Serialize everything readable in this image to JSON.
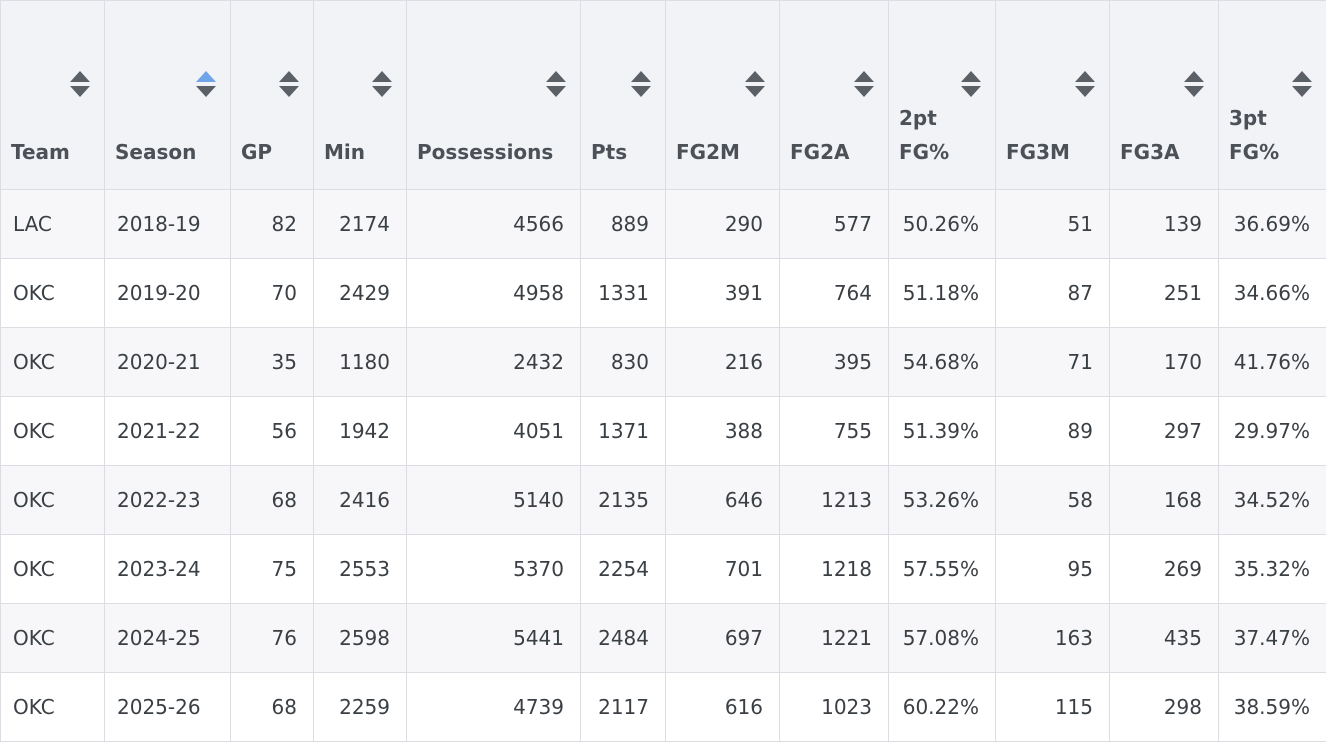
{
  "table": {
    "columns": [
      {
        "label": "Team",
        "sorted": false
      },
      {
        "label": "Season",
        "sorted": "asc"
      },
      {
        "label": "GP",
        "sorted": false
      },
      {
        "label": "Min",
        "sorted": false
      },
      {
        "label": "Possessions",
        "sorted": false
      },
      {
        "label": "Pts",
        "sorted": false
      },
      {
        "label": "FG2M",
        "sorted": false
      },
      {
        "label": "FG2A",
        "sorted": false
      },
      {
        "label": "2pt FG%",
        "sorted": false
      },
      {
        "label": "FG3M",
        "sorted": false
      },
      {
        "label": "FG3A",
        "sorted": false
      },
      {
        "label": "3pt FG%",
        "sorted": false
      }
    ],
    "rows": [
      [
        "LAC",
        "2018-19",
        "82",
        "2174",
        "4566",
        "889",
        "290",
        "577",
        "50.26%",
        "51",
        "139",
        "36.69%"
      ],
      [
        "OKC",
        "2019-20",
        "70",
        "2429",
        "4958",
        "1331",
        "391",
        "764",
        "51.18%",
        "87",
        "251",
        "34.66%"
      ],
      [
        "OKC",
        "2020-21",
        "35",
        "1180",
        "2432",
        "830",
        "216",
        "395",
        "54.68%",
        "71",
        "170",
        "41.76%"
      ],
      [
        "OKC",
        "2021-22",
        "56",
        "1942",
        "4051",
        "1371",
        "388",
        "755",
        "51.39%",
        "89",
        "297",
        "29.97%"
      ],
      [
        "OKC",
        "2022-23",
        "68",
        "2416",
        "5140",
        "2135",
        "646",
        "1213",
        "53.26%",
        "58",
        "168",
        "34.52%"
      ],
      [
        "OKC",
        "2023-24",
        "75",
        "2553",
        "5370",
        "2254",
        "701",
        "1218",
        "57.55%",
        "95",
        "269",
        "35.32%"
      ],
      [
        "OKC",
        "2024-25",
        "76",
        "2598",
        "5441",
        "2484",
        "697",
        "1221",
        "57.08%",
        "163",
        "435",
        "37.47%"
      ],
      [
        "OKC",
        "2025-26",
        "68",
        "2259",
        "4739",
        "2117",
        "616",
        "1023",
        "60.22%",
        "115",
        "298",
        "38.59%"
      ]
    ]
  },
  "colors": {
    "header_bg": "#f2f3f7",
    "row_alt_bg": "#f7f7f9",
    "border": "#dcdde2",
    "sort_active": "#6fa3ea",
    "sort_inactive": "#5b5f66"
  }
}
